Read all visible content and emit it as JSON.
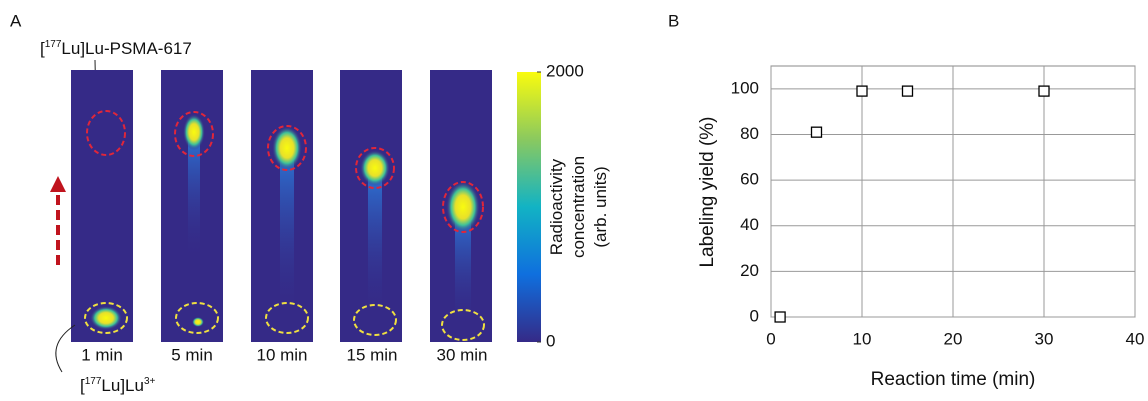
{
  "panel_a": {
    "label": "A",
    "product_label": [
      "[",
      "177",
      "Lu]Lu-PSMA-617"
    ],
    "free_label": [
      "[",
      "177",
      "Lu]Lu",
      "3+"
    ],
    "times": [
      "1 min",
      "5 min",
      "10 min",
      "15 min",
      "30 min"
    ],
    "colorbar": {
      "title": [
        "Radioactivity",
        "concentration",
        "(arb. units)"
      ],
      "ticks": [
        2000,
        0
      ]
    }
  },
  "chart_data": {
    "type": "scatter",
    "panel_label": "B",
    "x_label": "Reaction time (min)",
    "y_label": "Labeling yield (%)",
    "x": [
      1,
      5,
      10,
      15,
      30
    ],
    "values": [
      0,
      81,
      99,
      99,
      99
    ],
    "color": "#000000",
    "xlim": [
      0,
      40
    ],
    "ylim": [
      0,
      110
    ],
    "xticks": [
      0,
      10,
      20,
      30,
      40
    ],
    "yticks": [
      0,
      20,
      40,
      60,
      80,
      100
    ],
    "grid": true
  }
}
